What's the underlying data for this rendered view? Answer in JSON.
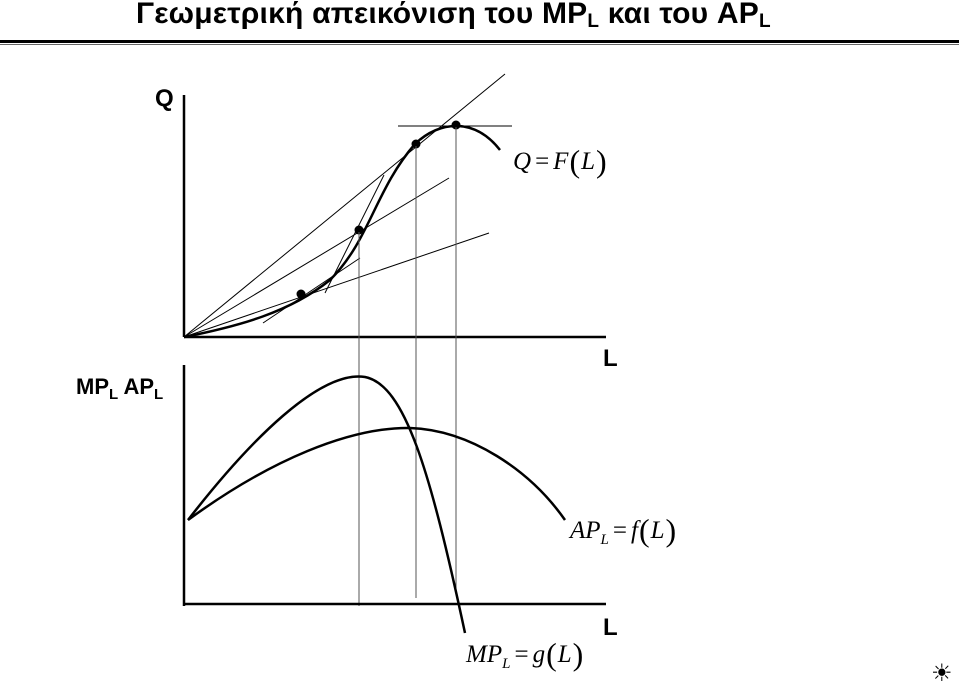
{
  "title": {
    "text": "Γεωμετρική απεικόνιση του MP",
    "sub1": "L",
    "mid": " και του AP",
    "sub2": "L"
  },
  "top_panel": {
    "y_axis_label": "Q",
    "x_axis_label": "L",
    "curve_label": {
      "lhs": "Q",
      "op": "=",
      "func": "F",
      "open": "(",
      "arg": "L",
      "close": ")"
    }
  },
  "bottom_panel": {
    "y_axis_label": {
      "a": "MP",
      "a_sub": "L",
      "b": "AP",
      "b_sub": "L"
    },
    "x_axis_label": "L",
    "ap_label": {
      "lhs": "AP",
      "lhs_sub": "L",
      "op": "=",
      "func": "f",
      "open": "(",
      "arg": "L",
      "close": ")"
    },
    "mp_label": {
      "lhs": "MP",
      "lhs_sub": "L",
      "op": "=",
      "func": "g",
      "open": "(",
      "arg": "L",
      "close": ")"
    }
  },
  "icons": {
    "corner": "sun-icon"
  },
  "colors": {
    "ink": "#000000",
    "guide": "#555555"
  }
}
